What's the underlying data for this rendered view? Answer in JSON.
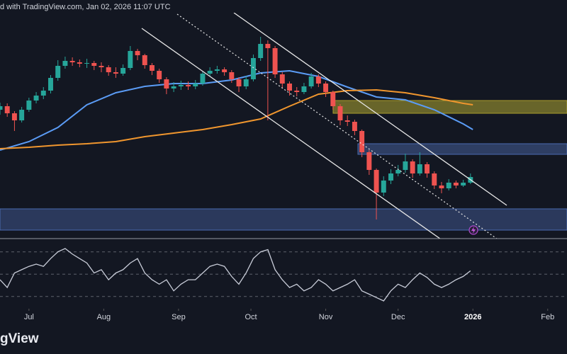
{
  "header": "d with TradingView.com, Jan 02, 2026 11:07 UTC",
  "footer_logo": "gView",
  "chart_data": [
    {
      "type": "candlestick",
      "x": [
        -12,
        -9,
        -6,
        -3,
        0,
        3,
        6,
        9,
        12,
        15,
        18,
        21,
        24,
        27,
        30,
        33,
        36,
        39,
        42,
        45,
        48,
        51,
        54,
        57,
        60,
        63,
        66,
        69,
        72,
        75,
        78,
        81,
        84,
        87,
        90,
        93,
        96,
        99,
        102,
        105,
        108,
        111,
        114,
        117,
        120,
        123,
        126,
        129,
        132,
        135,
        138,
        141,
        144,
        147,
        150,
        153,
        156,
        159,
        162,
        165,
        168,
        171,
        174,
        177,
        180,
        183
      ],
      "open": [
        180,
        185,
        175,
        165,
        180,
        193,
        200,
        207,
        225,
        242,
        249,
        247,
        245,
        246,
        242,
        240,
        233,
        231,
        239,
        263,
        257,
        243,
        235,
        223,
        210,
        213,
        215,
        213,
        217,
        231,
        235,
        237,
        233,
        223,
        213,
        223,
        253,
        273,
        267,
        230,
        217,
        207,
        205,
        213,
        227,
        217,
        205,
        185,
        165,
        163,
        150,
        120,
        95,
        63,
        80,
        90,
        95,
        107,
        90,
        103,
        90,
        73,
        69,
        77,
        73,
        77
      ],
      "high": [
        190,
        189,
        178,
        184,
        197,
        205,
        212,
        229,
        250,
        255,
        254,
        251,
        252,
        249,
        247,
        243,
        240,
        244,
        270,
        266,
        259,
        246,
        238,
        226,
        219,
        221,
        220,
        222,
        235,
        240,
        242,
        240,
        236,
        226,
        228,
        258,
        283,
        278,
        270,
        233,
        220,
        212,
        218,
        232,
        230,
        220,
        207,
        188,
        172,
        166,
        152,
        123,
        97,
        86,
        96,
        102,
        118,
        110,
        120,
        106,
        93,
        78,
        82,
        80,
        81,
        90
      ],
      "low": [
        173,
        170,
        150,
        162,
        177,
        189,
        195,
        203,
        221,
        238,
        242,
        240,
        239,
        236,
        233,
        228,
        225,
        228,
        236,
        250,
        238,
        229,
        218,
        202,
        205,
        208,
        208,
        209,
        214,
        228,
        231,
        228,
        218,
        205,
        209,
        220,
        249,
        165,
        225,
        211,
        200,
        199,
        202,
        210,
        212,
        198,
        180,
        158,
        157,
        144,
        113,
        88,
        25,
        58,
        75,
        86,
        91,
        84,
        87,
        84,
        68,
        62,
        66,
        69,
        71,
        75
      ],
      "close": [
        185,
        175,
        165,
        180,
        193,
        200,
        207,
        225,
        242,
        249,
        247,
        245,
        246,
        242,
        240,
        233,
        231,
        239,
        263,
        257,
        243,
        235,
        223,
        210,
        213,
        215,
        213,
        217,
        231,
        235,
        237,
        233,
        223,
        213,
        223,
        253,
        273,
        267,
        230,
        217,
        207,
        205,
        213,
        227,
        217,
        205,
        185,
        165,
        163,
        150,
        120,
        95,
        63,
        80,
        90,
        95,
        107,
        90,
        103,
        90,
        73,
        69,
        77,
        73,
        77,
        85
      ],
      "up_color": "#26a69a",
      "down_color": "#ef5350",
      "series": [
        {
          "color": "#5b9cf6",
          "x": [
            -12,
            0,
            12,
            24,
            36,
            48,
            60,
            72,
            84,
            96,
            108,
            120,
            132,
            144,
            156,
            168,
            180,
            184
          ],
          "values": [
            123,
            135,
            155,
            187,
            204,
            213,
            217,
            217,
            222,
            232,
            235,
            227,
            212,
            198,
            194,
            180,
            160,
            152
          ]
        },
        {
          "color": "#f0962e",
          "x": [
            -12,
            0,
            12,
            24,
            36,
            48,
            60,
            72,
            84,
            96,
            108,
            120,
            132,
            144,
            156,
            168,
            180,
            184
          ],
          "values": [
            125,
            127,
            130,
            132,
            135,
            142,
            147,
            152,
            159,
            167,
            185,
            202,
            207,
            208,
            204,
            197,
            189,
            187
          ]
        }
      ],
      "xlim": [
        -12,
        223
      ],
      "xticks": [
        {
          "value": 0,
          "label": "Jul"
        },
        {
          "value": 31,
          "label": "Aug"
        },
        {
          "value": 62,
          "label": "Sep"
        },
        {
          "value": 92,
          "label": "Oct"
        },
        {
          "value": 123,
          "label": "Nov"
        },
        {
          "value": 153,
          "label": "Dec"
        },
        {
          "value": 184,
          "label": "2026"
        },
        {
          "value": 215,
          "label": "Feb"
        }
      ],
      "ylim": [
        0,
        317
      ]
    },
    {
      "type": "line",
      "series": [
        {
          "color": "#c8ccd8",
          "values": [
            45,
            38,
            51,
            54,
            57,
            59,
            57,
            64,
            70,
            73,
            68,
            64,
            60,
            51,
            54,
            45,
            51,
            54,
            60,
            64,
            51,
            45,
            41,
            45,
            35,
            41,
            45,
            45,
            51,
            57,
            59,
            57,
            48,
            41,
            51,
            64,
            70,
            72,
            54,
            45,
            38,
            41,
            35,
            38,
            45,
            41,
            35,
            38,
            41,
            45,
            35,
            32,
            29,
            26,
            35,
            41,
            38,
            45,
            51,
            47,
            41,
            38,
            41,
            45,
            48,
            53
          ]
        }
      ],
      "levels": [
        30,
        50,
        70
      ],
      "ylim": [
        19,
        80
      ]
    }
  ]
}
